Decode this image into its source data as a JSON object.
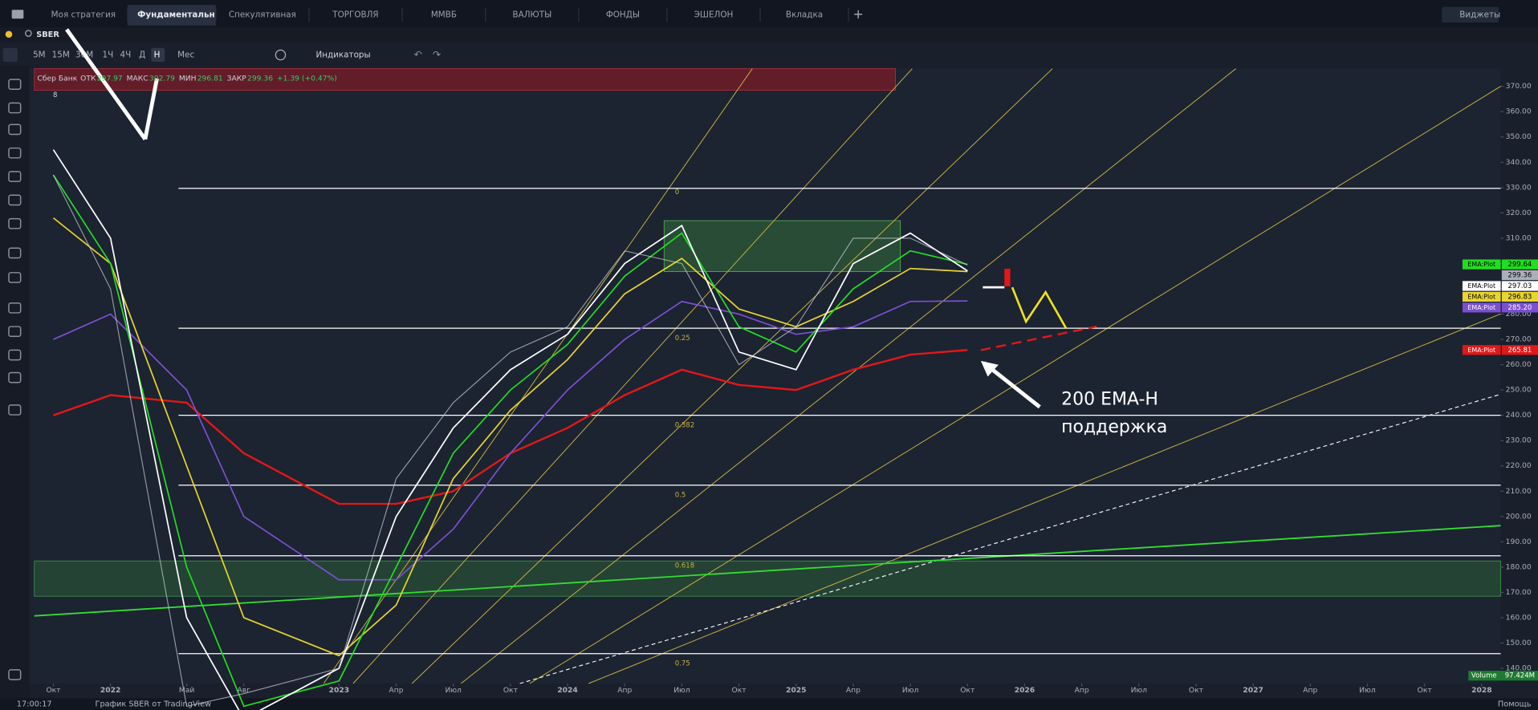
{
  "tabs": [
    "Моя стратегия",
    "Фундаментальн",
    "Спекулятивная",
    "ТОРГОВЛЯ",
    "ММВБ",
    "ВАЛЮТЫ",
    "ФОНДЫ",
    "ЭШЕЛОН",
    "Вкладка"
  ],
  "active_tab": 1,
  "add_tab": "+",
  "widgets": "Виджеты",
  "symbol": "SBER",
  "timeframes": [
    "5М",
    "15М",
    "30М",
    "1Ч",
    "4Ч",
    "Д",
    "Н",
    "Мес"
  ],
  "active_timeframe": 6,
  "indicators": "Индикаторы",
  "legend": {
    "name": "Сбер Банк",
    "items": [
      {
        "label": "ОТК",
        "value": "297.97"
      },
      {
        "label": "МАКС",
        "value": "302.79"
      },
      {
        "label": "МИН",
        "value": "296.81"
      },
      {
        "label": "ЗАКР",
        "value": "299.36"
      }
    ],
    "change": "+1.39 (+0.47%)",
    "count": "8"
  },
  "chart_data": {
    "type": "line",
    "x": [
      "2021-10",
      "2022-01",
      "2022-05",
      "2022-08",
      "2023-01",
      "2023-04",
      "2023-07",
      "2023-10",
      "2024-01",
      "2024-04",
      "2024-07",
      "2024-10",
      "2025-01",
      "2025-04",
      "2025-07",
      "2025-10"
    ],
    "price": {
      "color": "#d0d4dc",
      "values": [
        335,
        290,
        125,
        130,
        140,
        215,
        245,
        265,
        275,
        305,
        300,
        260,
        275,
        310,
        310,
        299.36
      ]
    },
    "series": [
      {
        "color": "#e01818",
        "values": [
          240,
          248,
          245,
          225,
          205,
          205,
          210,
          225,
          235,
          248,
          258,
          252,
          250,
          258,
          264,
          265.81
        ]
      },
      {
        "color": "#7b4fd0",
        "values": [
          270,
          280,
          250,
          200,
          175,
          175,
          195,
          225,
          250,
          270,
          285,
          280,
          272,
          275,
          285,
          285.2
        ]
      },
      {
        "color": "#e8d530",
        "values": [
          318,
          300,
          220,
          160,
          145,
          165,
          215,
          242,
          262,
          288,
          302,
          282,
          275,
          285,
          298,
          296.83
        ]
      },
      {
        "color": "#22dd22",
        "values": [
          335,
          300,
          180,
          125,
          135,
          180,
          225,
          250,
          268,
          295,
          312,
          275,
          265,
          290,
          305,
          299.64
        ]
      },
      {
        "color": "#ffffff",
        "values": [
          345,
          310,
          160,
          120,
          140,
          200,
          235,
          258,
          272,
          300,
          315,
          265,
          258,
          300,
          312,
          297.03
        ]
      }
    ],
    "xlim": [
      "2021-09",
      "2028-02"
    ],
    "xticks": [
      {
        "value": "2021-10",
        "label": "Окт"
      },
      {
        "value": "2022-01",
        "label": "2022"
      },
      {
        "value": "2022-05",
        "label": "Май"
      },
      {
        "value": "2022-08",
        "label": "Авг"
      },
      {
        "value": "2023-01",
        "label": "2023"
      },
      {
        "value": "2023-04",
        "label": "Апр"
      },
      {
        "value": "2023-07",
        "label": "Июл"
      },
      {
        "value": "2023-10",
        "label": "Окт"
      },
      {
        "value": "2024-01",
        "label": "2024"
      },
      {
        "value": "2024-04",
        "label": "Апр"
      },
      {
        "value": "2024-07",
        "label": "Июл"
      },
      {
        "value": "2024-10",
        "label": "Окт"
      },
      {
        "value": "2025-01",
        "label": "2025"
      },
      {
        "value": "2025-04",
        "label": "Апр"
      },
      {
        "value": "2025-07",
        "label": "Июл"
      },
      {
        "value": "2025-10",
        "label": "Окт"
      },
      {
        "value": "2026-01",
        "label": "2026"
      },
      {
        "value": "2026-04",
        "label": "Апр"
      },
      {
        "value": "2026-07",
        "label": "Июл"
      },
      {
        "value": "2026-10",
        "label": "Окт"
      },
      {
        "value": "2027-01",
        "label": "2027"
      },
      {
        "value": "2027-04",
        "label": "Апр"
      },
      {
        "value": "2027-07",
        "label": "Июл"
      },
      {
        "value": "2027-10",
        "label": "Окт"
      },
      {
        "value": "2028-01",
        "label": "2028"
      }
    ],
    "ylim": [
      134,
      377
    ],
    "yticks": [
      {
        "value": 370,
        "label": "370.00"
      },
      {
        "value": 360,
        "label": "360.00"
      },
      {
        "value": 350,
        "label": "350.00"
      },
      {
        "value": 340,
        "label": "340.00"
      },
      {
        "value": 330,
        "label": "330.00"
      },
      {
        "value": 320,
        "label": "320.00"
      },
      {
        "value": 310,
        "label": "310.00"
      },
      {
        "value": 300,
        "label": "300.00"
      },
      {
        "value": 290,
        "label": "290.00"
      },
      {
        "value": 280,
        "label": "280.00"
      },
      {
        "value": 270,
        "label": "270.00"
      },
      {
        "value": 260,
        "label": "260.00"
      },
      {
        "value": 250,
        "label": "250.00"
      },
      {
        "value": 240,
        "label": "240.00"
      },
      {
        "value": 230,
        "label": "230.00"
      },
      {
        "value": 220,
        "label": "220.00"
      },
      {
        "value": 210,
        "label": "210.00"
      },
      {
        "value": 200,
        "label": "200.00"
      },
      {
        "value": 190,
        "label": "190.00"
      },
      {
        "value": 180,
        "label": "180.00"
      },
      {
        "value": 170,
        "label": "170.00"
      },
      {
        "value": 160,
        "label": "160.00"
      },
      {
        "value": 150,
        "label": "150.00"
      },
      {
        "value": 140,
        "label": "140.00"
      }
    ],
    "levels": [
      {
        "label": "0",
        "value": 329.7
      },
      {
        "label": "0.25",
        "value": 274.4
      },
      {
        "label": "0.382",
        "value": 240
      },
      {
        "label": "0.5",
        "value": 212.4
      },
      {
        "label": "0.618",
        "value": 184.5
      },
      {
        "label": "0.75",
        "value": 145.8
      }
    ],
    "price_labels": [
      {
        "text": "EMA:Plot",
        "value": 299.64,
        "label": "299.64",
        "color": "#22dd22"
      },
      {
        "value": 299.36,
        "label": "299.36",
        "color": "#aab0bb"
      },
      {
        "text": "EMA:Plot",
        "value": 297.03,
        "label": "297.03",
        "color": "#ffffff"
      },
      {
        "text": "EMA:Plot",
        "value": 296.83,
        "label": "296.83",
        "color": "#e8d530"
      },
      {
        "text": "EMA:Plot",
        "value": 285.2,
        "label": "285.20",
        "color": "#7b4fd0"
      },
      {
        "text": "EMA:Plot",
        "value": 265.81,
        "label": "265.81",
        "color": "#e01818"
      }
    ],
    "volume": {
      "text": "Volume",
      "label": "97.424M"
    },
    "annotation": [
      "200 EMA-H",
      "поддержка"
    ]
  },
  "status": {
    "time": "17:00:17",
    "text": "График SBER от TradingView",
    "help": "Помощь"
  }
}
